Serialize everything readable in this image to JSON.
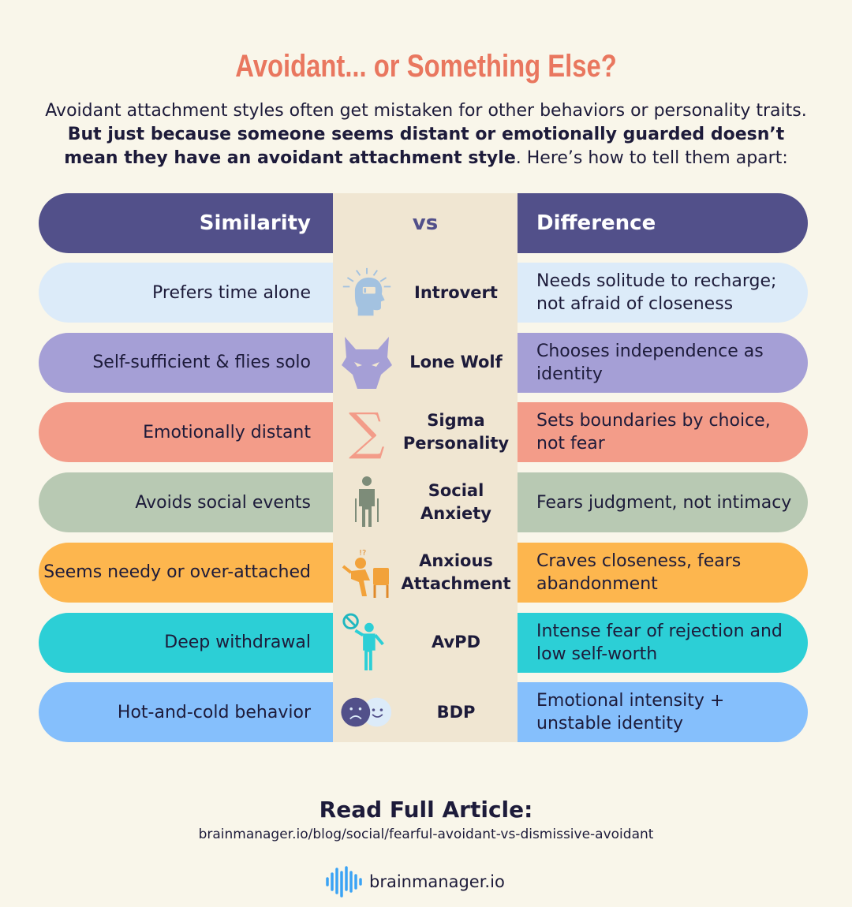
{
  "title": "Avoidant... or Something Else?",
  "intro": {
    "part1": "Avoidant attachment styles often get mistaken for other behaviors or personality traits. ",
    "bold": "But just because someone seems distant or emotionally guarded doesn’t mean they have an avoidant attachment style",
    "part2": ". Here’s how to tell them apart:"
  },
  "header": {
    "similarity": "Similarity",
    "vs": "vs",
    "difference": "Difference",
    "color": "#52508a"
  },
  "rows": [
    {
      "similarity": "Prefers time alone",
      "name": "Introvert",
      "difference": "Needs solitude to recharge; not afraid of closeness",
      "color": "#dcebf9",
      "icon": "head-battery-icon"
    },
    {
      "similarity": "Self-sufficient & flies solo",
      "name": "Lone Wolf",
      "difference": "Chooses independence as identity",
      "color": "#a59fd6",
      "icon": "wolf-icon"
    },
    {
      "similarity": "Emotionally distant",
      "name": "Sigma Personality",
      "difference": "Sets boundaries by choice, not fear",
      "color": "#f39c89",
      "icon": "sigma-icon"
    },
    {
      "similarity": "Avoids social events",
      "name": "Social Anxiety",
      "difference": "Fears judgment, not intimacy",
      "color": "#b8c9b3",
      "icon": "anxious-person-icon"
    },
    {
      "similarity": "Seems needy or over-attached",
      "name": "Anxious Attachment",
      "difference": "Craves closeness, fears abandonment",
      "color": "#fdb64e",
      "icon": "worried-person-chair-icon"
    },
    {
      "similarity": "Deep withdrawal",
      "name": "AvPD",
      "difference": "Intense fear of rejection and low self-worth",
      "color": "#2ccfd6",
      "icon": "person-rejecting-icon"
    },
    {
      "similarity": "Hot-and-cold behavior",
      "name": "BDP",
      "difference": "Emotional intensity + unstable identity",
      "color": "#85bffc",
      "icon": "sad-happy-faces-icon"
    }
  ],
  "footer": {
    "heading": "Read Full Article:",
    "url": "brainmanager.io/blog/social/fearful-avoidant-vs-dismissive-avoidant",
    "logo": "brainmanager.io"
  }
}
